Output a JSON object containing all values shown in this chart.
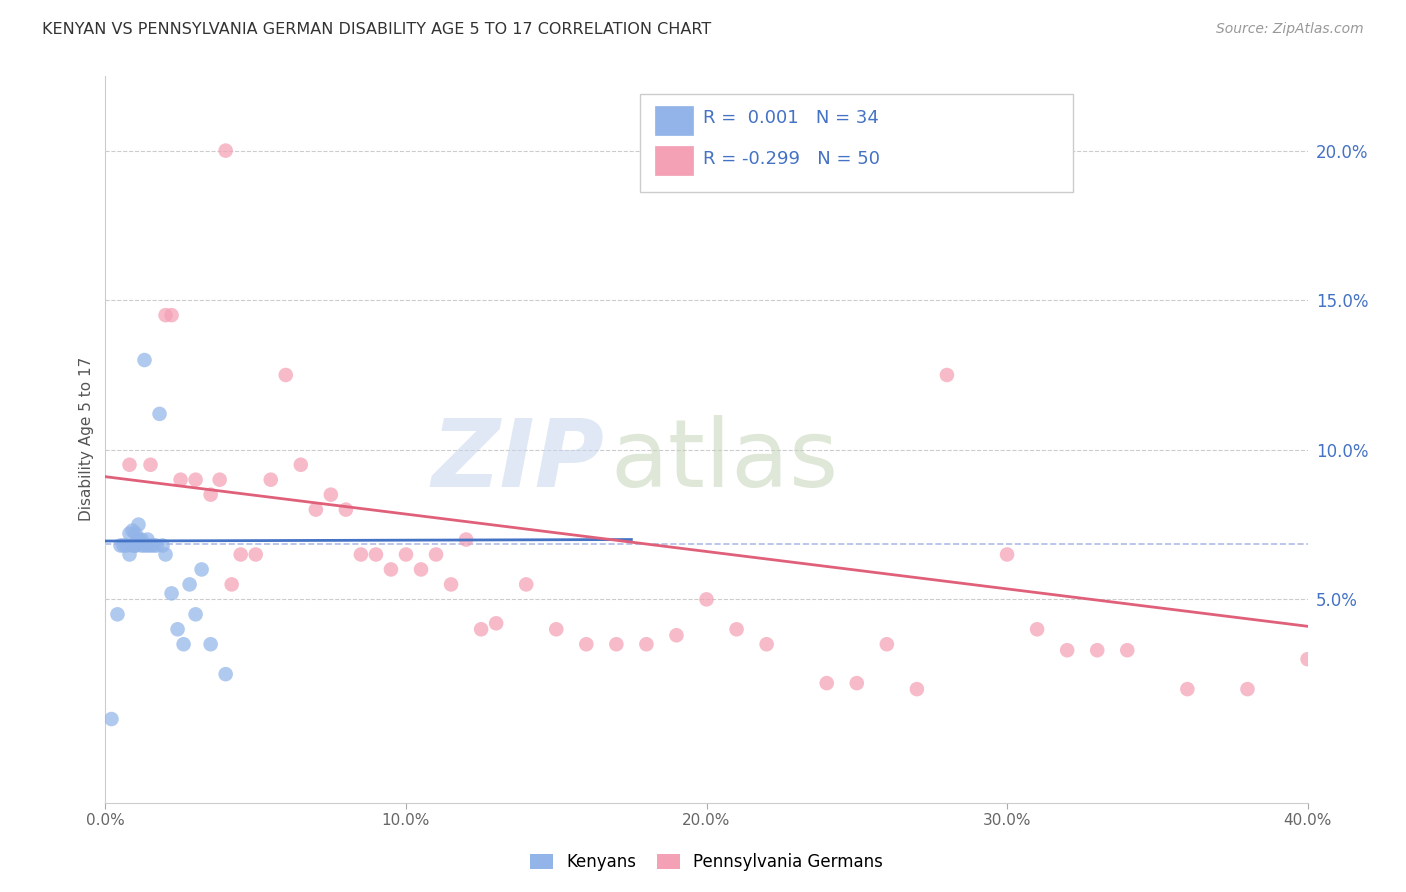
{
  "title": "KENYAN VS PENNSYLVANIA GERMAN DISABILITY AGE 5 TO 17 CORRELATION CHART",
  "source": "Source: ZipAtlas.com",
  "ylabel": "Disability Age 5 to 17",
  "xlim": [
    0.0,
    0.4
  ],
  "ylim": [
    -0.018,
    0.225
  ],
  "legend1_r": "0.001",
  "legend1_n": "34",
  "legend2_r": "-0.299",
  "legend2_n": "50",
  "kenyan_color": "#92b4e8",
  "penn_color": "#f4a0b5",
  "kenyan_line_color": "#4472c4",
  "penn_line_color": "#e0607a",
  "dashed_line_color": "#b0bce8",
  "grid_color": "#cccccc",
  "title_color": "#333333",
  "right_tick_color": "#4472c4",
  "legend_text_color": "#333333",
  "legend_rn_color": "#4472c4",
  "source_color": "#999999",
  "kenyan_x": [
    0.002,
    0.004,
    0.005,
    0.006,
    0.007,
    0.008,
    0.008,
    0.009,
    0.009,
    0.01,
    0.01,
    0.01,
    0.011,
    0.011,
    0.012,
    0.012,
    0.013,
    0.013,
    0.014,
    0.014,
    0.015,
    0.016,
    0.017,
    0.018,
    0.019,
    0.02,
    0.022,
    0.024,
    0.026,
    0.028,
    0.03,
    0.032,
    0.035,
    0.04
  ],
  "kenyan_y": [
    0.01,
    0.045,
    0.068,
    0.068,
    0.068,
    0.065,
    0.072,
    0.073,
    0.068,
    0.072,
    0.068,
    0.068,
    0.075,
    0.07,
    0.068,
    0.07,
    0.13,
    0.068,
    0.068,
    0.07,
    0.068,
    0.068,
    0.068,
    0.112,
    0.068,
    0.065,
    0.052,
    0.04,
    0.035,
    0.055,
    0.045,
    0.06,
    0.035,
    0.025
  ],
  "penn_x": [
    0.008,
    0.015,
    0.02,
    0.022,
    0.025,
    0.03,
    0.035,
    0.038,
    0.04,
    0.042,
    0.045,
    0.05,
    0.055,
    0.06,
    0.065,
    0.07,
    0.075,
    0.08,
    0.085,
    0.09,
    0.095,
    0.1,
    0.105,
    0.11,
    0.115,
    0.12,
    0.125,
    0.13,
    0.14,
    0.15,
    0.16,
    0.17,
    0.18,
    0.19,
    0.2,
    0.21,
    0.22,
    0.24,
    0.25,
    0.26,
    0.27,
    0.28,
    0.3,
    0.31,
    0.32,
    0.33,
    0.34,
    0.36,
    0.38,
    0.4
  ],
  "penn_y": [
    0.095,
    0.095,
    0.145,
    0.145,
    0.09,
    0.09,
    0.085,
    0.09,
    0.2,
    0.055,
    0.065,
    0.065,
    0.09,
    0.125,
    0.095,
    0.08,
    0.085,
    0.08,
    0.065,
    0.065,
    0.06,
    0.065,
    0.06,
    0.065,
    0.055,
    0.07,
    0.04,
    0.042,
    0.055,
    0.04,
    0.035,
    0.035,
    0.035,
    0.038,
    0.05,
    0.04,
    0.035,
    0.022,
    0.022,
    0.035,
    0.02,
    0.125,
    0.065,
    0.04,
    0.033,
    0.033,
    0.033,
    0.02,
    0.02,
    0.03
  ],
  "blue_trend_x0": 0.0,
  "blue_trend_x1": 0.175,
  "blue_trend_y0": 0.0695,
  "blue_trend_y1": 0.07,
  "pink_trend_x0": 0.0,
  "pink_trend_x1": 0.4,
  "pink_trend_y0": 0.091,
  "pink_trend_y1": 0.041,
  "dashed_hline_y": 0.0685
}
